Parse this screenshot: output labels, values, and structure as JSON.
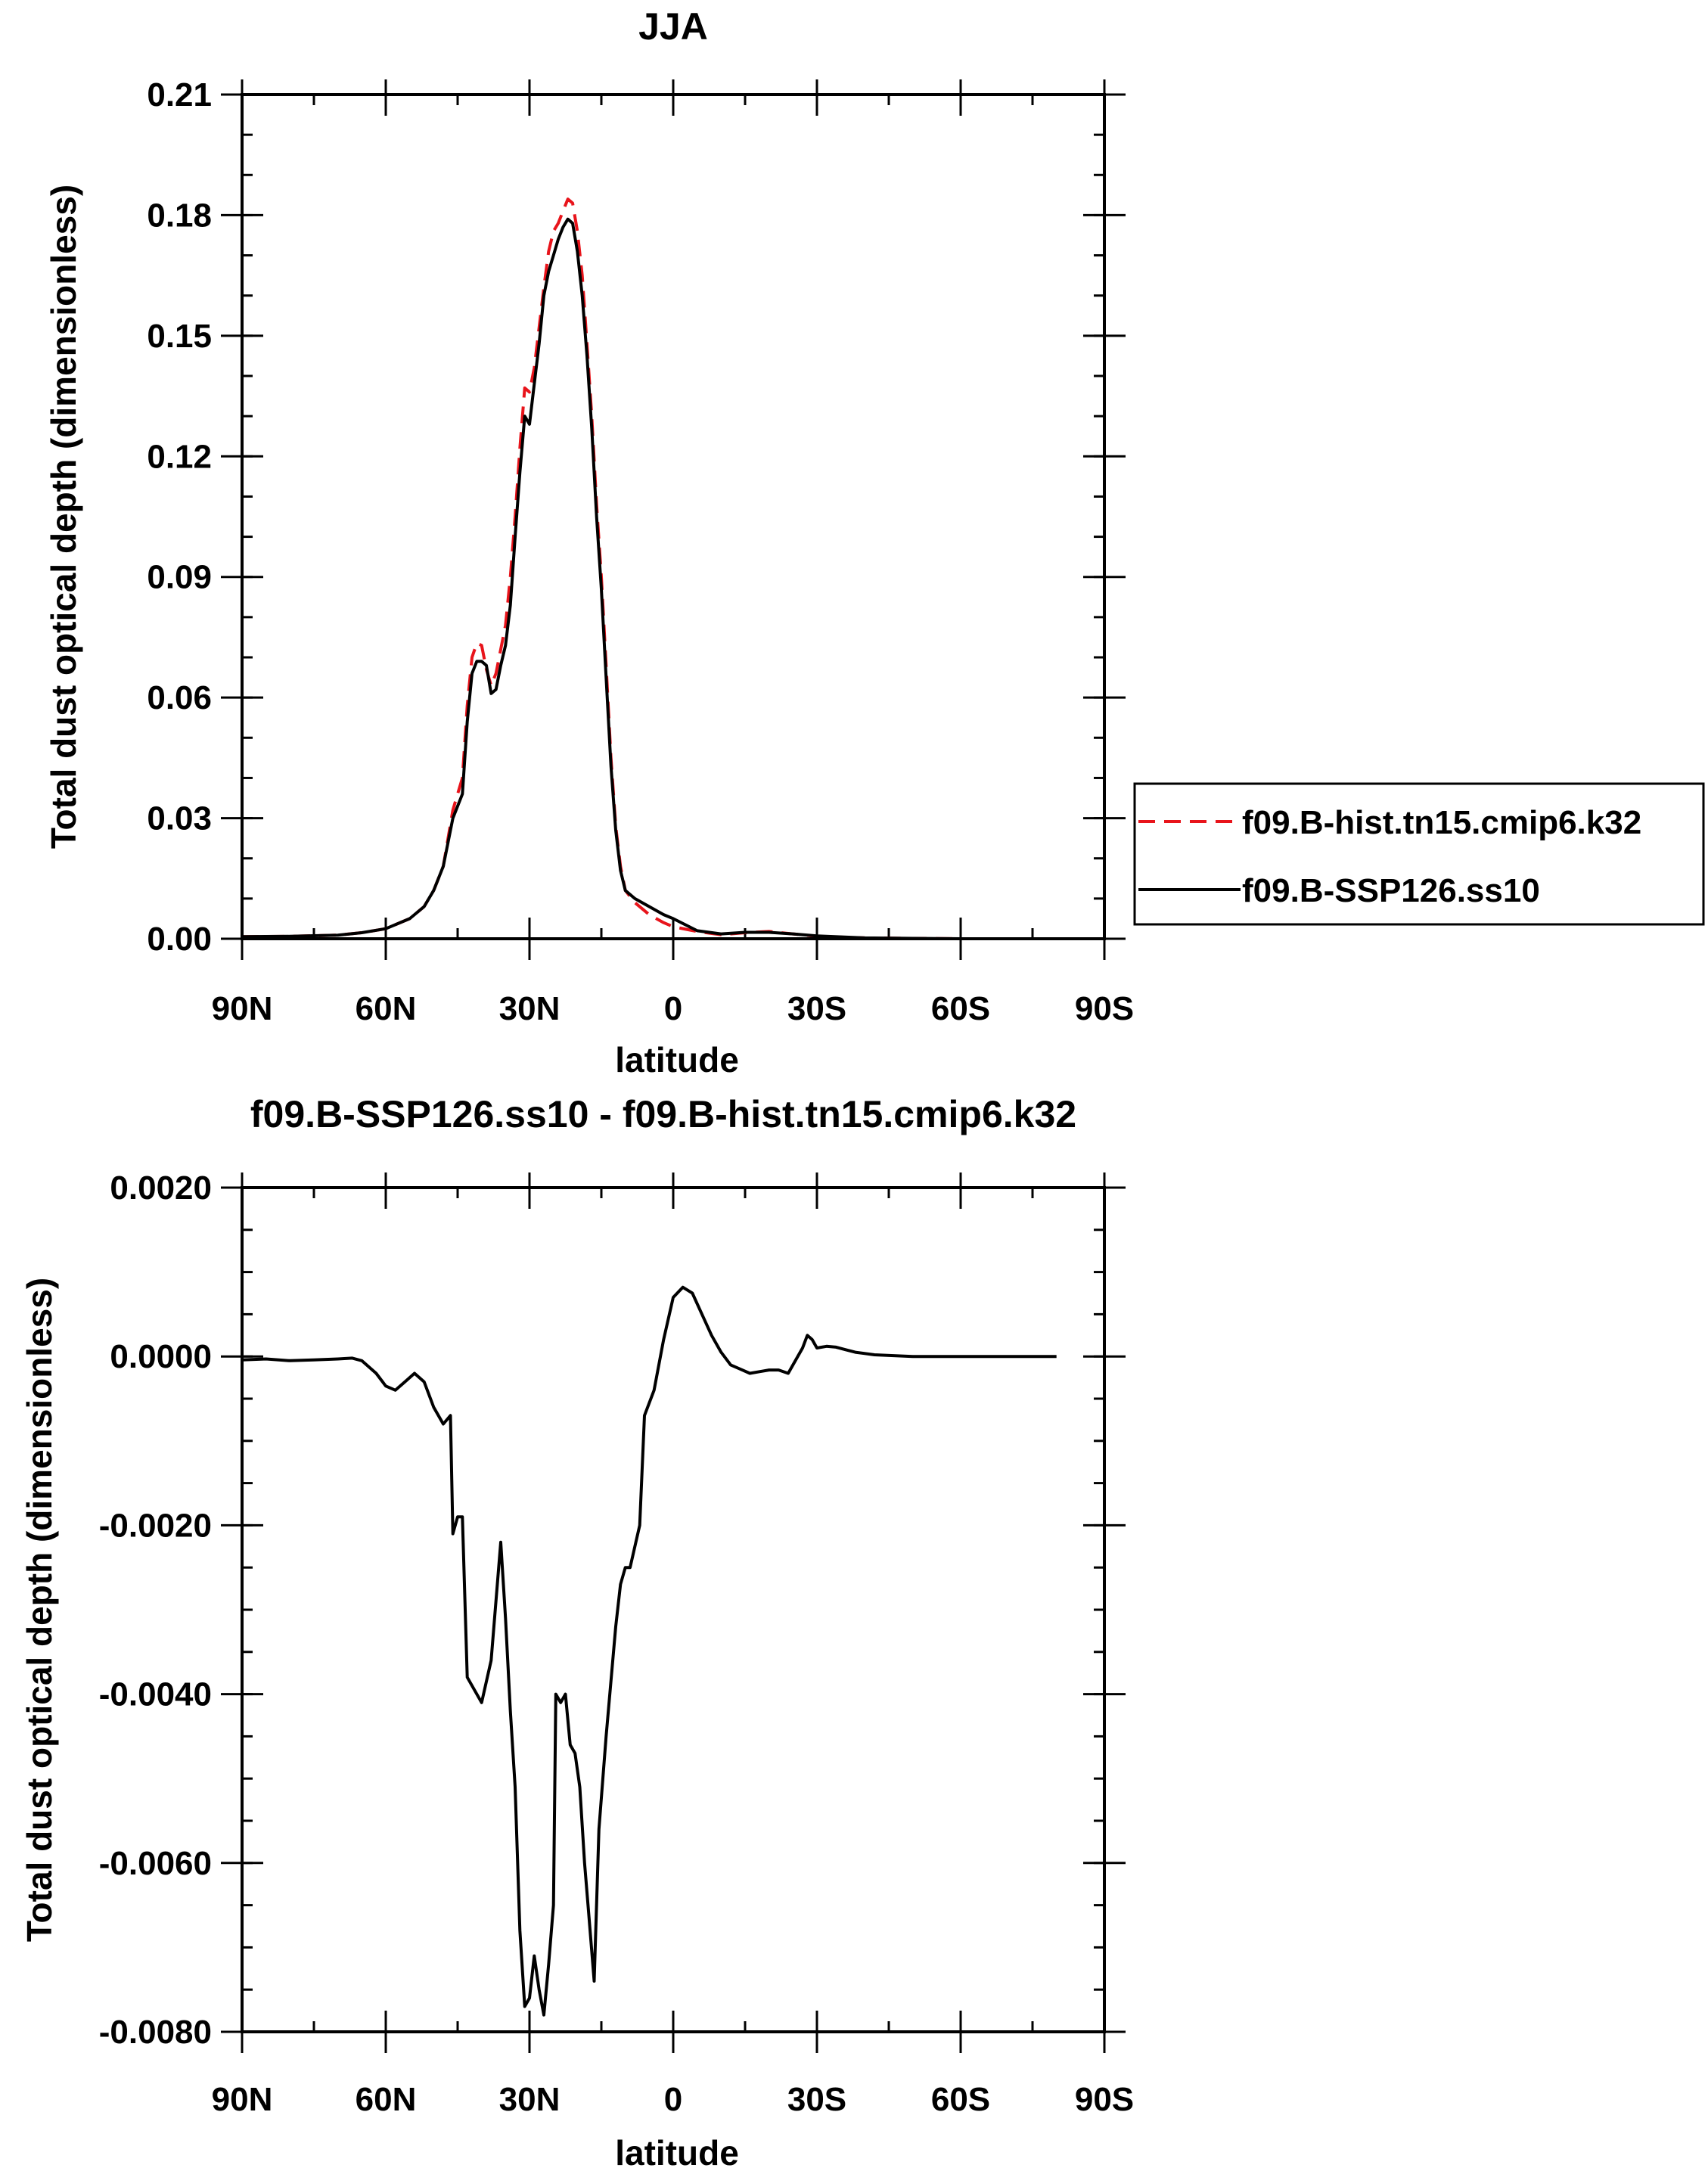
{
  "colors": {
    "hist": "#e8141b",
    "ssp": "#000000",
    "axis": "#000000",
    "legend_border": "#000000"
  },
  "chart_data": [
    {
      "type": "line",
      "title": "JJA",
      "xlabel": "latitude",
      "ylabel": "Total dust optical depth (dimensionless)",
      "xlim": [
        90,
        -90
      ],
      "ylim": [
        0,
        0.21
      ],
      "x_ticks": [
        90,
        60,
        30,
        0,
        -30,
        -60,
        -90
      ],
      "x_tick_labels": [
        "90N",
        "60N",
        "30N",
        "0",
        "30S",
        "60S",
        "90S"
      ],
      "y_ticks": [
        0,
        0.03,
        0.06,
        0.09,
        0.12,
        0.15,
        0.18,
        0.21
      ],
      "y_tick_labels": [
        "0.00",
        "0.03",
        "0.06",
        "0.09",
        "0.12",
        "0.15",
        "0.18",
        "0.21"
      ],
      "grid": false,
      "legend_position": "right, outside plot",
      "legend": [
        "f09.B-hist.tn15.cmip6.k32",
        "f09.B-SSP126.ss10"
      ],
      "series": [
        {
          "name": "f09.B-hist.tn15.cmip6.k32",
          "style": "dashed",
          "color": "#e8141b",
          "points": [
            [
              90,
              0.0005
            ],
            [
              80,
              0.0006
            ],
            [
              70,
              0.0009
            ],
            [
              65,
              0.0015
            ],
            [
              60,
              0.0025
            ],
            [
              55,
              0.005
            ],
            [
              52,
              0.008
            ],
            [
              50,
              0.012
            ],
            [
              48,
              0.018
            ],
            [
              46,
              0.032
            ],
            [
              44,
              0.04
            ],
            [
              43,
              0.058
            ],
            [
              42,
              0.07
            ],
            [
              41,
              0.0735
            ],
            [
              40,
              0.073
            ],
            [
              39,
              0.067
            ],
            [
              38,
              0.063
            ],
            [
              37,
              0.066
            ],
            [
              36,
              0.072
            ],
            [
              35,
              0.078
            ],
            [
              34,
              0.09
            ],
            [
              33,
              0.105
            ],
            [
              32,
              0.122
            ],
            [
              31,
              0.137
            ],
            [
              30,
              0.136
            ],
            [
              29,
              0.142
            ],
            [
              28,
              0.152
            ],
            [
              27,
              0.162
            ],
            [
              26,
              0.171
            ],
            [
              25,
              0.176
            ],
            [
              24,
              0.178
            ],
            [
              23,
              0.181
            ],
            [
              22,
              0.184
            ],
            [
              21,
              0.183
            ],
            [
              20,
              0.176
            ],
            [
              19,
              0.165
            ],
            [
              18,
              0.148
            ],
            [
              17,
              0.13
            ],
            [
              16,
              0.108
            ],
            [
              15,
              0.09
            ],
            [
              14,
              0.068
            ],
            [
              13,
              0.045
            ],
            [
              12,
              0.028
            ],
            [
              11,
              0.018
            ],
            [
              10,
              0.012
            ],
            [
              8,
              0.009
            ],
            [
              5,
              0.006
            ],
            [
              2,
              0.004
            ],
            [
              0,
              0.003
            ],
            [
              -5,
              0.0018
            ],
            [
              -10,
              0.001
            ],
            [
              -15,
              0.0015
            ],
            [
              -20,
              0.0018
            ],
            [
              -25,
              0.0012
            ],
            [
              -30,
              0.0006
            ],
            [
              -40,
              0.0002
            ],
            [
              -50,
              0.0001
            ],
            [
              -60,
              0.0
            ],
            [
              -70,
              0.0
            ],
            [
              -80,
              0.0
            ],
            [
              -90,
              0.0
            ]
          ]
        },
        {
          "name": "f09.B-SSP126.ss10",
          "style": "solid",
          "color": "#000000",
          "points": [
            [
              90,
              0.0005
            ],
            [
              80,
              0.0006
            ],
            [
              70,
              0.0009
            ],
            [
              65,
              0.0015
            ],
            [
              60,
              0.0025
            ],
            [
              55,
              0.005
            ],
            [
              52,
              0.008
            ],
            [
              50,
              0.012
            ],
            [
              48,
              0.018
            ],
            [
              46,
              0.03
            ],
            [
              44,
              0.036
            ],
            [
              43,
              0.054
            ],
            [
              42,
              0.066
            ],
            [
              41,
              0.069
            ],
            [
              40,
              0.069
            ],
            [
              39,
              0.068
            ],
            [
              38,
              0.061
            ],
            [
              37,
              0.062
            ],
            [
              36,
              0.068
            ],
            [
              35,
              0.073
            ],
            [
              34,
              0.083
            ],
            [
              33,
              0.1
            ],
            [
              32,
              0.116
            ],
            [
              31,
              0.13
            ],
            [
              30,
              0.128
            ],
            [
              29,
              0.138
            ],
            [
              28,
              0.148
            ],
            [
              27,
              0.16
            ],
            [
              26,
              0.166
            ],
            [
              25,
              0.17
            ],
            [
              24,
              0.174
            ],
            [
              23,
              0.177
            ],
            [
              22,
              0.179
            ],
            [
              21,
              0.178
            ],
            [
              20,
              0.171
            ],
            [
              19,
              0.16
            ],
            [
              18,
              0.145
            ],
            [
              17,
              0.127
            ],
            [
              16,
              0.105
            ],
            [
              15,
              0.087
            ],
            [
              14,
              0.065
            ],
            [
              13,
              0.043
            ],
            [
              12,
              0.027
            ],
            [
              11,
              0.017
            ],
            [
              10,
              0.012
            ],
            [
              8,
              0.01
            ],
            [
              5,
              0.008
            ],
            [
              2,
              0.006
            ],
            [
              0,
              0.005
            ],
            [
              -5,
              0.002
            ],
            [
              -10,
              0.0012
            ],
            [
              -15,
              0.0016
            ],
            [
              -20,
              0.0016
            ],
            [
              -25,
              0.0012
            ],
            [
              -30,
              0.0007
            ],
            [
              -40,
              0.0002
            ],
            [
              -50,
              0.0001
            ],
            [
              -60,
              0.0
            ],
            [
              -70,
              0.0
            ],
            [
              -80,
              0.0
            ],
            [
              -90,
              0.0
            ]
          ]
        }
      ]
    },
    {
      "type": "line",
      "title": "f09.B-SSP126.ss10 - f09.B-hist.tn15.cmip6.k32",
      "xlabel": "latitude",
      "ylabel": "Total dust optical depth (dimensionless)",
      "xlim": [
        90,
        -90
      ],
      "ylim": [
        -0.008,
        0.002
      ],
      "x_ticks": [
        90,
        60,
        30,
        0,
        -30,
        -60,
        -90
      ],
      "x_tick_labels": [
        "90N",
        "60N",
        "30N",
        "0",
        "30S",
        "60S",
        "90S"
      ],
      "y_ticks": [
        -0.008,
        -0.006,
        -0.004,
        -0.002,
        0.0,
        0.002
      ],
      "y_tick_labels": [
        "-0.0080",
        "-0.0060",
        "-0.0040",
        "-0.0020",
        "0.0000",
        "0.0020"
      ],
      "grid": false,
      "series": [
        {
          "style": "solid",
          "color": "#000000",
          "points": [
            [
              90,
              -4e-05
            ],
            [
              85,
              -3e-05
            ],
            [
              80,
              -5e-05
            ],
            [
              75,
              -4e-05
            ],
            [
              70,
              -3e-05
            ],
            [
              67,
              -2e-05
            ],
            [
              65,
              -5e-05
            ],
            [
              62,
              -0.0002
            ],
            [
              60,
              -0.00035
            ],
            [
              58,
              -0.0004
            ],
            [
              56,
              -0.0003
            ],
            [
              54,
              -0.0002
            ],
            [
              52,
              -0.0003
            ],
            [
              50,
              -0.0006
            ],
            [
              48,
              -0.0008
            ],
            [
              46.5,
              -0.0007
            ],
            [
              46,
              -0.0021
            ],
            [
              45,
              -0.0019
            ],
            [
              44,
              -0.0019
            ],
            [
              43,
              -0.0038
            ],
            [
              40,
              -0.0041
            ],
            [
              38,
              -0.0036
            ],
            [
              36,
              -0.0022
            ],
            [
              35,
              -0.0031
            ],
            [
              34,
              -0.0042
            ],
            [
              33,
              -0.0051
            ],
            [
              32,
              -0.0068
            ],
            [
              31,
              -0.0077
            ],
            [
              30,
              -0.0076
            ],
            [
              29,
              -0.0071
            ],
            [
              28,
              -0.0075
            ],
            [
              27,
              -0.0078
            ],
            [
              26,
              -0.0072
            ],
            [
              25,
              -0.0065
            ],
            [
              24.5,
              -0.004
            ],
            [
              23.5,
              -0.0041
            ],
            [
              22.5,
              -0.004
            ],
            [
              21.5,
              -0.0046
            ],
            [
              20.5,
              -0.0047
            ],
            [
              19.5,
              -0.0051
            ],
            [
              18.5,
              -0.006
            ],
            [
              17.5,
              -0.0067
            ],
            [
              16.5,
              -0.0074
            ],
            [
              15.5,
              -0.0056
            ],
            [
              14,
              -0.0045
            ],
            [
              12,
              -0.0032
            ],
            [
              11,
              -0.0027
            ],
            [
              10,
              -0.0025
            ],
            [
              9,
              -0.0025
            ],
            [
              7,
              -0.002
            ],
            [
              6,
              -0.0007
            ],
            [
              4,
              -0.0004
            ],
            [
              2,
              0.0002
            ],
            [
              0,
              0.0007
            ],
            [
              -2,
              0.00082
            ],
            [
              -4,
              0.00075
            ],
            [
              -6,
              0.0005
            ],
            [
              -8,
              0.00025
            ],
            [
              -10,
              5e-05
            ],
            [
              -12,
              -0.0001
            ],
            [
              -14,
              -0.00015
            ],
            [
              -16,
              -0.0002
            ],
            [
              -18,
              -0.00018
            ],
            [
              -20,
              -0.00016
            ],
            [
              -22,
              -0.00016
            ],
            [
              -24,
              -0.0002
            ],
            [
              -25,
              -0.0001
            ],
            [
              -27,
              0.0001
            ],
            [
              -28,
              0.00025
            ],
            [
              -29,
              0.0002
            ],
            [
              -30,
              0.0001
            ],
            [
              -32,
              0.00012
            ],
            [
              -34,
              0.00011
            ],
            [
              -36,
              8e-05
            ],
            [
              -38,
              5e-05
            ],
            [
              -42,
              2e-05
            ],
            [
              -50,
              0.0
            ],
            [
              -60,
              0.0
            ],
            [
              -70,
              0.0
            ],
            [
              -80,
              0.0
            ]
          ]
        }
      ]
    }
  ]
}
